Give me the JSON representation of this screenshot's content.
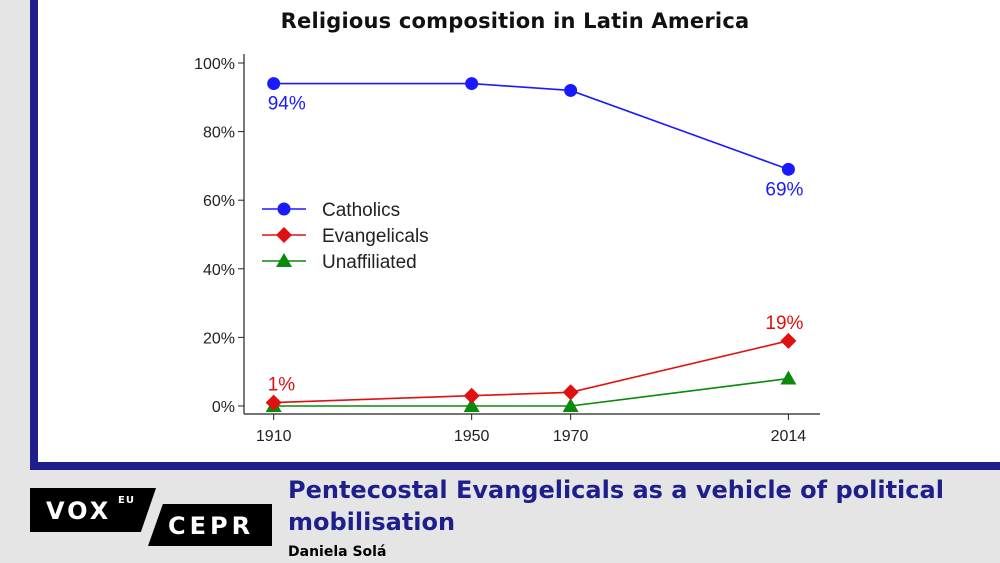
{
  "chart_data": {
    "type": "line",
    "title": "Religious composition in Latin America",
    "xlabel": "",
    "ylabel": "",
    "x": [
      1910,
      1950,
      1970,
      2014
    ],
    "x_tick_labels": [
      "1910",
      "1950",
      "1970",
      "2014"
    ],
    "ylim": [
      0,
      100
    ],
    "y_ticks": [
      0,
      20,
      40,
      60,
      80,
      100
    ],
    "y_tick_labels": [
      "0%",
      "20%",
      "40%",
      "60%",
      "80%",
      "100%"
    ],
    "grid": false,
    "legend_position": "left-middle",
    "series": [
      {
        "name": "Catholics",
        "color": "#1a1aff",
        "marker": "circle",
        "values": [
          94,
          94,
          92,
          69
        ]
      },
      {
        "name": "Evangelicals",
        "color": "#e01010",
        "marker": "diamond",
        "values": [
          1,
          3,
          4,
          19
        ]
      },
      {
        "name": "Unaffiliated",
        "color": "#0a8a0a",
        "marker": "triangle",
        "values": [
          0,
          0,
          0,
          8
        ]
      }
    ],
    "annotations": [
      {
        "text": "94%",
        "series": "Catholics",
        "x": 1910,
        "y": 94,
        "position": "below"
      },
      {
        "text": "69%",
        "series": "Catholics",
        "x": 2014,
        "y": 69,
        "position": "below"
      },
      {
        "text": "1%",
        "series": "Evangelicals",
        "x": 1910,
        "y": 1,
        "position": "above"
      },
      {
        "text": "19%",
        "series": "Evangelicals",
        "x": 2014,
        "y": 19,
        "position": "above"
      }
    ]
  },
  "footer": {
    "logo_vox": "VOX",
    "logo_eu": "EU",
    "logo_cepr": "CEPR",
    "headline": "Pentecostal Evangelicals as a vehicle of political mobilisation",
    "author": "Daniela Solá"
  },
  "colors": {
    "brand_blue": "#1e1e8c",
    "background": "#e5e5e5"
  }
}
